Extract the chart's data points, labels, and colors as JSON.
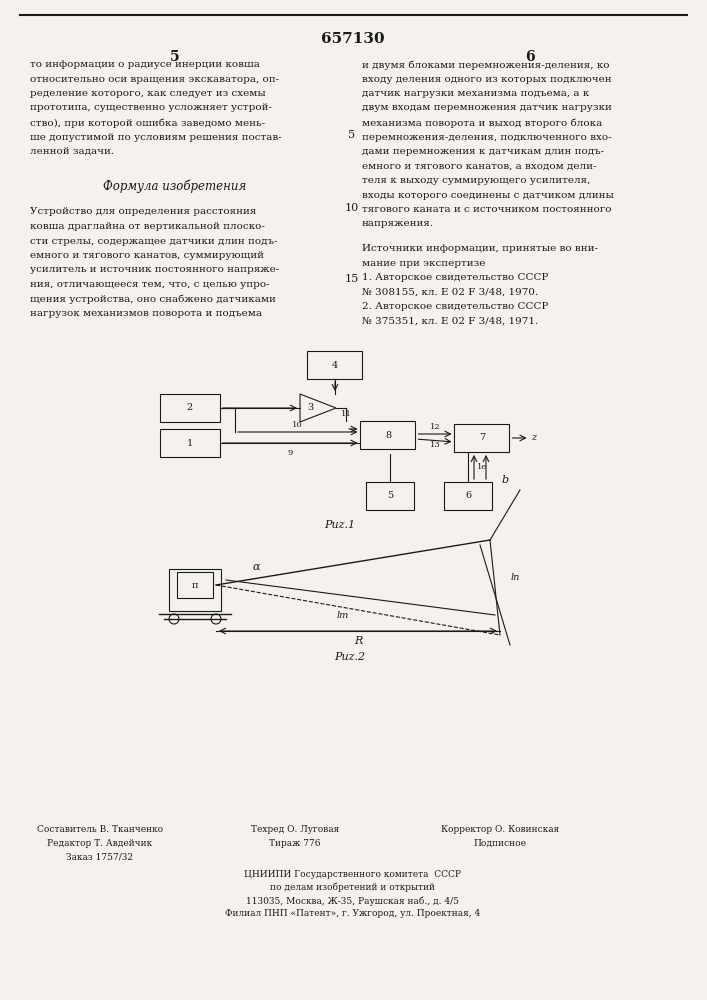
{
  "title": "657130",
  "col_numbers": [
    "5",
    "6"
  ],
  "page_bg": "#f5f2ed",
  "text_color": "#1a1a1a",
  "left_col_text": [
    "то информации о радиусе инерции ковша",
    "относительно оси вращения экскаватора, оп-",
    "ределение которого, как следует из схемы",
    "прототипа, существенно усложняет устрой-",
    "ство), при которой ошибка заведомо мень-",
    "ше допустимой по условиям решения постав-",
    "ленной задачи."
  ],
  "formula_title": "Формула изобретения",
  "formula_text": [
    "Устройство для определения расстояния",
    "ковша драглайна от вертикальной плоско-",
    "сти стрелы, содержащее датчики длин подъ-",
    "емного и тягового канатов, суммирующий",
    "усилитель и источник постоянного напряже-",
    "ния, отличающееся тем, что, с целью упро-",
    "щения устройства, оно снабжено датчиками",
    "нагрузок механизмов поворота и подъема"
  ],
  "right_col_text": [
    "и двумя блоками перемножения-деления, ко",
    "входу деления одного из которых подключен",
    "датчик нагрузки механизма подъема, а к",
    "двум входам перемножения датчик нагрузки",
    "механизма поворота и выход второго блока",
    "перемножения-деления, подключенного вхо-",
    "дами перемножения к датчикам длин подъ-",
    "емного и тягового канатов, а входом дели-",
    "теля к выходу суммирующего усилителя,",
    "входы которого соединены с датчиком длины",
    "тягового каната и с источником постоянного"
  ],
  "right_col_last": "напряжения.",
  "sources_title": "Источники информации, принятые во вни-",
  "sources_title2": "мание при экспертизе",
  "source1": "1. Авторское свидетельство СССР",
  "source2": "№ 308155, кл. Е 02 F 3/48, 1970.",
  "source3": "2. Авторское свидетельство СССР",
  "source4": "№ 375351, кл. Е 02 F 3/48, 1971.",
  "fig1_label": "Риz.1",
  "fig2_label": "Риz.2",
  "footer_left1": "Редактор Т. Авдейчик",
  "footer_left2": "Заказ 1757/32",
  "footer_mid1": "Составитель В. Тканченко",
  "footer_mid2": "Техред О. Луговая",
  "footer_mid3": "Тираж 776",
  "footer_right1": "Корректор О. Ковинская",
  "footer_right2": "Подписное",
  "footer_org1": "ЦНИИПИ Государственного комитета  СССР",
  "footer_org2": "по делам изобретений и открытий",
  "footer_org3": "113035, Москва, Ж-35, Раушская наб., д. 4/5",
  "footer_org4": "Филиал ПНП «Патент», г. Ужгород, ул. Проектная, 4",
  "line_number_5": "5",
  "line_number_10": "10",
  "line_number_15": "15"
}
